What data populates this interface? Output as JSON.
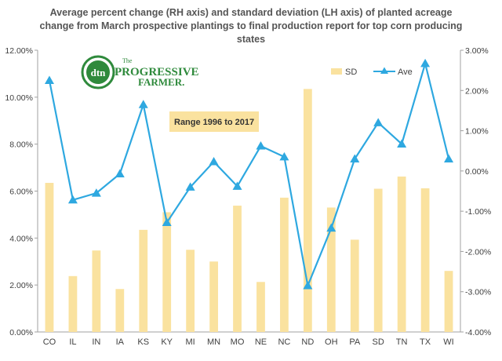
{
  "chart_data": {
    "type": "bar-line combo",
    "title": "Average percent change (RH axis) and standard deviation (LH axis) of planted acreage change from March prospective plantings to final production report for top corn producing states",
    "categories": [
      "CO",
      "IL",
      "IN",
      "IA",
      "KS",
      "KY",
      "MI",
      "MN",
      "MO",
      "NE",
      "NC",
      "ND",
      "OH",
      "PA",
      "SD",
      "TN",
      "TX",
      "WI"
    ],
    "series": [
      {
        "name": "SD",
        "kind": "bar",
        "axis": "left",
        "color": "#FAE29F",
        "values": [
          6.35,
          2.38,
          3.47,
          1.83,
          4.35,
          5.1,
          3.5,
          3.0,
          5.38,
          2.13,
          5.72,
          10.35,
          5.3,
          3.93,
          6.1,
          6.62,
          6.12,
          2.6
        ]
      },
      {
        "name": "Ave",
        "kind": "line",
        "axis": "right",
        "color": "#2EA8E0",
        "values": [
          2.25,
          -0.72,
          -0.55,
          -0.07,
          1.65,
          -1.28,
          -0.4,
          0.23,
          -0.38,
          0.62,
          0.35,
          -2.85,
          -1.42,
          0.3,
          1.2,
          0.67,
          2.67,
          0.3
        ]
      }
    ],
    "left_axis": {
      "min": 0,
      "max": 12,
      "step": 2,
      "tick_labels": [
        "0.00%",
        "2.00%",
        "4.00%",
        "6.00%",
        "8.00%",
        "10.00%",
        "12.00%"
      ]
    },
    "right_axis": {
      "min": -4,
      "max": 3,
      "step": 1,
      "tick_labels": [
        "-4.00%",
        "-3.00%",
        "-2.00%",
        "-1.00%",
        "0.00%",
        "1.00%",
        "2.00%",
        "3.00%"
      ]
    },
    "legend": {
      "placement": "top-right",
      "items": [
        "SD",
        "Ave"
      ]
    },
    "annotation": "Range 1996 to 2017",
    "grid": false
  },
  "logo": {
    "badge_text": "dtn",
    "line1": "The",
    "line2": "PROGRESSIVE",
    "line3": "FARMER."
  }
}
